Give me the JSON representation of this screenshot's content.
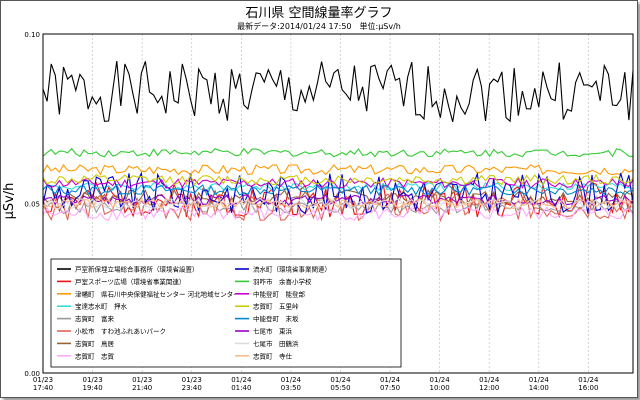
{
  "chart_data": {
    "type": "line",
    "title": "石川県 空間線量率グラフ",
    "subtitle": "最新データ:2014/01/24 17:50　単位:μSv/h",
    "ylabel": "μSv/h",
    "xlabel": "",
    "ylim": [
      0.0,
      0.1
    ],
    "yticks": [
      "0.10",
      "0.05",
      "0.00"
    ],
    "xticks": [
      {
        "date": "01/23",
        "time": "17:40"
      },
      {
        "date": "01/23",
        "time": "19:40"
      },
      {
        "date": "01/23",
        "time": "21:40"
      },
      {
        "date": "01/23",
        "time": "23:40"
      },
      {
        "date": "01/24",
        "time": "01:40"
      },
      {
        "date": "01/24",
        "time": "03:50"
      },
      {
        "date": "01/24",
        "time": "05:50"
      },
      {
        "date": "01/24",
        "time": "07:50"
      },
      {
        "date": "01/24",
        "time": "10:00"
      },
      {
        "date": "01/24",
        "time": "12:00"
      },
      {
        "date": "01/24",
        "time": "14:00"
      },
      {
        "date": "01/24",
        "time": "16:00"
      }
    ],
    "grid": true,
    "legend_position": "inside-bottom",
    "series": [
      {
        "name": "戸室新保埋立場総合事務所（環境省設置）",
        "color": "#000000",
        "base": 0.083,
        "amp": 0.009,
        "seed": 1
      },
      {
        "name": "戸室スポーツ広場（環境省事業関連）",
        "color": "#ee1111",
        "base": 0.051,
        "amp": 0.005,
        "seed": 2
      },
      {
        "name": "津幡町　県石川中央保健福祉センター 河北地域センター",
        "color": "#ff9900",
        "base": 0.06,
        "amp": 0.0015,
        "seed": 3
      },
      {
        "name": "宝達志水町　押水",
        "color": "#33dddd",
        "base": 0.055,
        "amp": 0.0012,
        "seed": 4
      },
      {
        "name": "志賀町　富来",
        "color": "#999999",
        "base": 0.049,
        "amp": 0.002,
        "seed": 5
      },
      {
        "name": "小松市　すわ池ふれあいパーク",
        "color": "#dd6655",
        "base": 0.049,
        "amp": 0.004,
        "seed": 6
      },
      {
        "name": "志賀町　鳥居",
        "color": "#996633",
        "base": 0.052,
        "amp": 0.002,
        "seed": 7
      },
      {
        "name": "志賀町　志賀",
        "color": "#ffaaff",
        "base": 0.047,
        "amp": 0.002,
        "seed": 8
      },
      {
        "name": "流水町（環境省事業関連）",
        "color": "#0000cc",
        "base": 0.053,
        "amp": 0.006,
        "seed": 9
      },
      {
        "name": "羽咋市　余喜小学校",
        "color": "#33cc33",
        "base": 0.065,
        "amp": 0.0012,
        "seed": 10
      },
      {
        "name": "中能登町　能登部",
        "color": "#cc00cc",
        "base": 0.056,
        "amp": 0.0015,
        "seed": 11
      },
      {
        "name": "志賀町　五里峠",
        "color": "#cccc00",
        "base": 0.057,
        "amp": 0.0015,
        "seed": 12
      },
      {
        "name": "中能登町　末坂",
        "color": "#0088cc",
        "base": 0.054,
        "amp": 0.0015,
        "seed": 13
      },
      {
        "name": "七尾市　東浜",
        "color": "#9900cc",
        "base": 0.051,
        "amp": 0.0015,
        "seed": 14
      },
      {
        "name": "七尾市　田鶴浜",
        "color": "#dddddd",
        "base": 0.05,
        "amp": 0.0015,
        "seed": 15
      },
      {
        "name": "志賀町　寺仕",
        "color": "#ffbb88",
        "base": 0.05,
        "amp": 0.0015,
        "seed": 16
      }
    ]
  }
}
